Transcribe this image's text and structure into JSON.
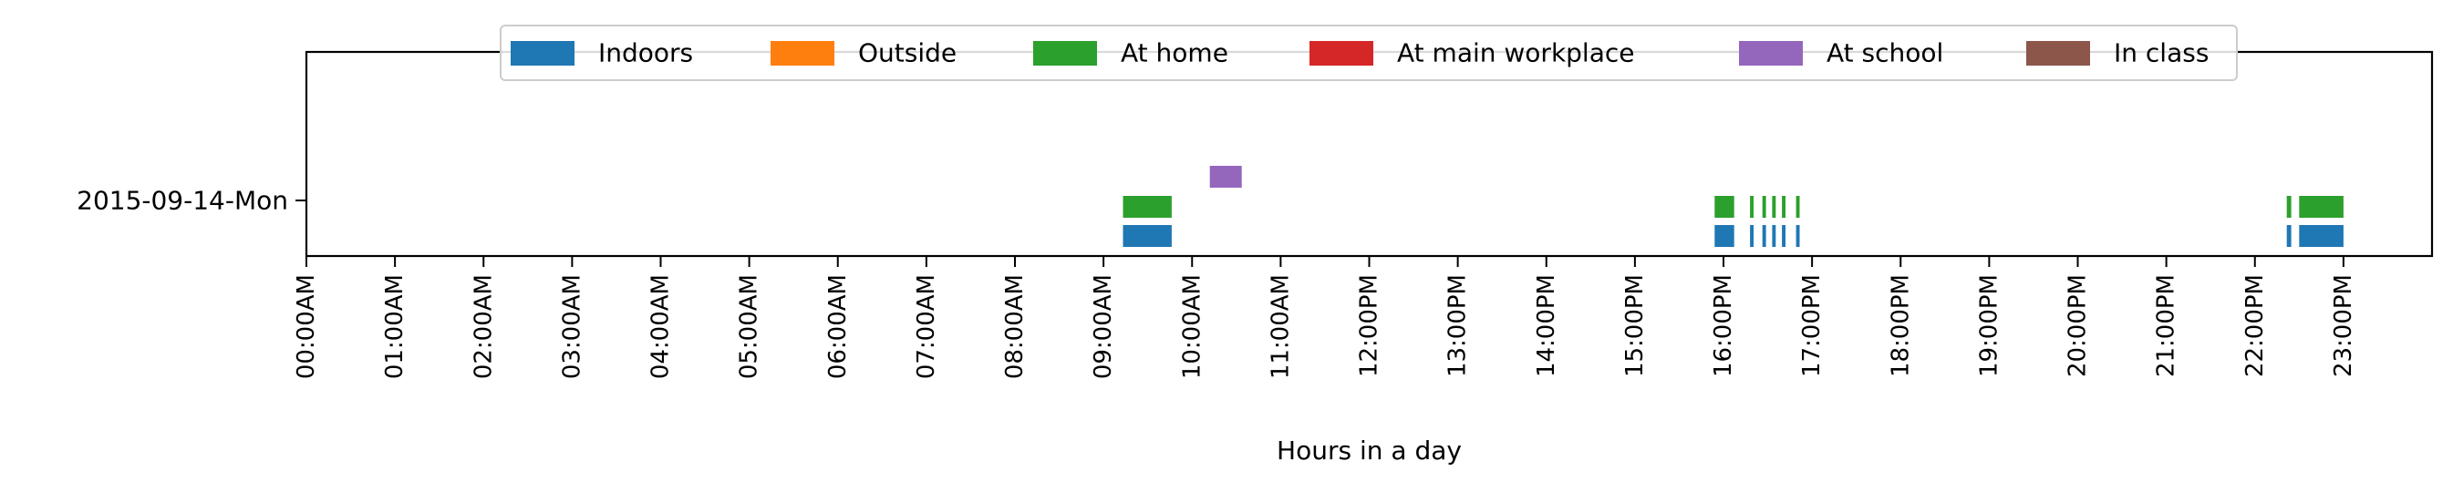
{
  "chart_data": {
    "type": "timeline",
    "title": "",
    "xlabel": "Hours in a day",
    "ylabel": "",
    "xlim": [
      0,
      24
    ],
    "x_ticks": [
      0,
      1,
      2,
      3,
      4,
      5,
      6,
      7,
      8,
      9,
      10,
      11,
      12,
      13,
      14,
      15,
      16,
      17,
      18,
      19,
      20,
      21,
      22,
      23
    ],
    "x_tick_labels": [
      "00:00AM",
      "01:00AM",
      "02:00AM",
      "03:00AM",
      "04:00AM",
      "05:00AM",
      "06:00AM",
      "07:00AM",
      "08:00AM",
      "09:00AM",
      "10:00AM",
      "11:00AM",
      "12:00PM",
      "13:00PM",
      "14:00PM",
      "15:00PM",
      "16:00PM",
      "17:00PM",
      "18:00PM",
      "19:00PM",
      "20:00PM",
      "21:00PM",
      "22:00PM",
      "23:00PM"
    ],
    "rows": [
      "2015-09-14-Mon"
    ],
    "grid": false,
    "legend_position": "top-center",
    "series": [
      {
        "name": "Indoors",
        "color": "#1f77b4",
        "day": "2015-09-14-Mon",
        "intervals": [
          [
            9.22,
            9.77
          ],
          [
            15.9,
            16.12
          ],
          [
            16.3,
            16.34
          ],
          [
            16.44,
            16.48
          ],
          [
            16.55,
            16.59
          ],
          [
            16.66,
            16.7
          ],
          [
            16.82,
            16.86
          ],
          [
            22.36,
            22.41
          ],
          [
            22.5,
            23.0
          ]
        ]
      },
      {
        "name": "Outside",
        "color": "#ff7f0e",
        "day": "2015-09-14-Mon",
        "intervals": []
      },
      {
        "name": "At home",
        "color": "#2ca02c",
        "day": "2015-09-14-Mon",
        "intervals": [
          [
            9.22,
            9.77
          ],
          [
            15.9,
            16.12
          ],
          [
            16.3,
            16.34
          ],
          [
            16.44,
            16.48
          ],
          [
            16.55,
            16.59
          ],
          [
            16.66,
            16.7
          ],
          [
            16.82,
            16.86
          ],
          [
            22.36,
            22.41
          ],
          [
            22.5,
            23.0
          ]
        ]
      },
      {
        "name": "At main workplace",
        "color": "#d62728",
        "day": "2015-09-14-Mon",
        "intervals": []
      },
      {
        "name": "At school",
        "color": "#9467bd",
        "day": "2015-09-14-Mon",
        "intervals": [
          [
            10.2,
            10.56
          ]
        ]
      },
      {
        "name": "In class",
        "color": "#8c564b",
        "day": "2015-09-14-Mon",
        "intervals": []
      }
    ]
  }
}
